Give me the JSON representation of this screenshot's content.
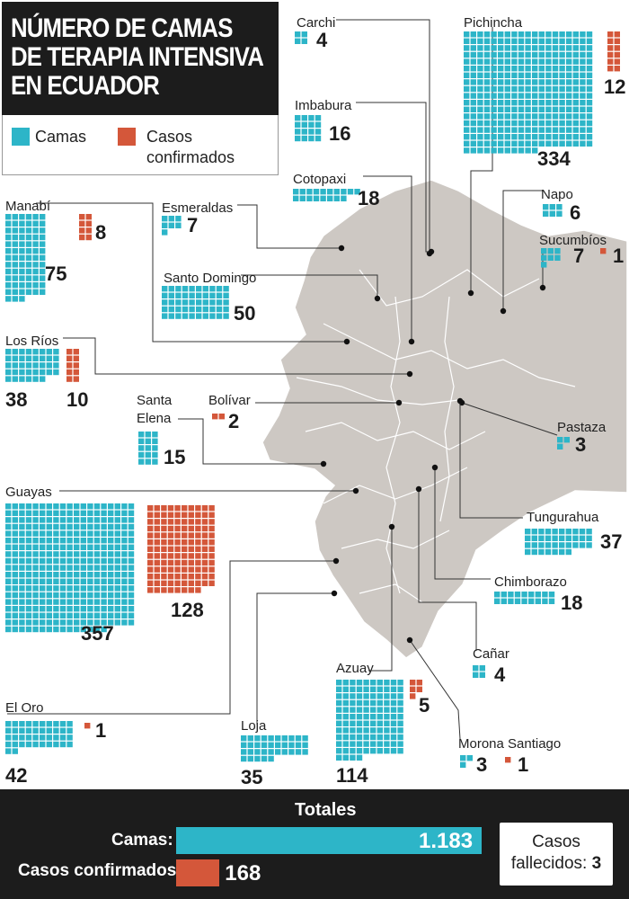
{
  "title": [
    "NÚMERO DE CAMAS",
    "DE TERAPIA INTENSIVA",
    "EN ECUADOR"
  ],
  "legend": {
    "camas": "Camas",
    "casos_1": "Casos",
    "casos_2": "confirmados"
  },
  "colors": {
    "camas": "#2db5c8",
    "casos": "#d4573a",
    "map_fill": "#cdc8c3",
    "dark": "#1c1c1c"
  },
  "chart_data": {
    "type": "bar",
    "title": "NÚMERO DE CAMAS DE TERAPIA INTENSIVA EN ECUADOR",
    "series_names": [
      "Camas",
      "Casos confirmados"
    ],
    "provinces": [
      {
        "name": "Carchi",
        "camas": 4,
        "casos": null
      },
      {
        "name": "Pichincha",
        "camas": 334,
        "casos": 12
      },
      {
        "name": "Imbabura",
        "camas": 16,
        "casos": null
      },
      {
        "name": "Cotopaxi",
        "camas": 18,
        "casos": null
      },
      {
        "name": "Manabí",
        "camas": 75,
        "casos": 8
      },
      {
        "name": "Esmeraldas",
        "camas": 7,
        "casos": null
      },
      {
        "name": "Napo",
        "camas": 6,
        "casos": null
      },
      {
        "name": "Sucumbíos",
        "camas": 7,
        "casos": 1
      },
      {
        "name": "Santo Domingo",
        "camas": 50,
        "casos": null
      },
      {
        "name": "Los Ríos",
        "camas": 38,
        "casos": 10
      },
      {
        "name": "Santa Elena",
        "camas": 15,
        "casos": null
      },
      {
        "name": "Bolívar",
        "camas": null,
        "casos": 2
      },
      {
        "name": "Pastaza",
        "camas": 3,
        "casos": null
      },
      {
        "name": "Guayas",
        "camas": 357,
        "casos": 128
      },
      {
        "name": "Tungurahua",
        "camas": 37,
        "casos": null
      },
      {
        "name": "Chimborazo",
        "camas": 18,
        "casos": null
      },
      {
        "name": "Cañar",
        "camas": 4,
        "casos": null
      },
      {
        "name": "Azuay",
        "camas": 114,
        "casos": 5
      },
      {
        "name": "El Oro",
        "camas": 42,
        "casos": 1
      },
      {
        "name": "Loja",
        "camas": 35,
        "casos": null
      },
      {
        "name": "Morona Santiago",
        "camas": 3,
        "casos": 1
      }
    ]
  },
  "totals": {
    "heading": "Totales",
    "camas_label": "Camas:",
    "camas_value": 1183,
    "camas_display": "1.183",
    "casos_label": "Casos confirmados:",
    "casos_value": 168,
    "casos_display": "168",
    "fallecidos_line1": "Casos",
    "fallecidos_line2": "fallecidos:",
    "fallecidos_value": "3"
  }
}
